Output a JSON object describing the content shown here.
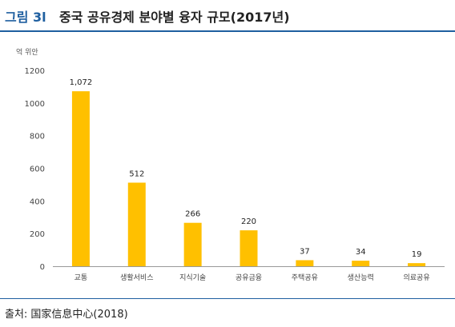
{
  "header": {
    "figure_label": "그림 3l",
    "title": "중국 공유경제 분야별 융자 규모(2017년)"
  },
  "unit_label": "억 위안",
  "source": "출처: 国家信息中心(2018)",
  "colors": {
    "accent": "#1f5fa0",
    "bar": "#ffc000"
  },
  "chart_data": {
    "type": "bar",
    "title": "",
    "xlabel": "",
    "ylabel": "억 위안",
    "ylim": [
      0,
      1200
    ],
    "yticks": [
      0,
      200,
      400,
      600,
      800,
      1000,
      1200
    ],
    "ytick_labels": [
      "0",
      "200",
      "400",
      "600",
      "800",
      "1000",
      "1200"
    ],
    "grid": false,
    "categories": [
      "교통",
      "생활서비스",
      "지식기술",
      "공유금융",
      "주택공유",
      "생산능력",
      "의료공유"
    ],
    "values": [
      1072,
      512,
      266,
      220,
      37,
      34,
      19
    ],
    "value_labels": [
      "1,072",
      "512",
      "266",
      "220",
      "37",
      "34",
      "19"
    ]
  }
}
